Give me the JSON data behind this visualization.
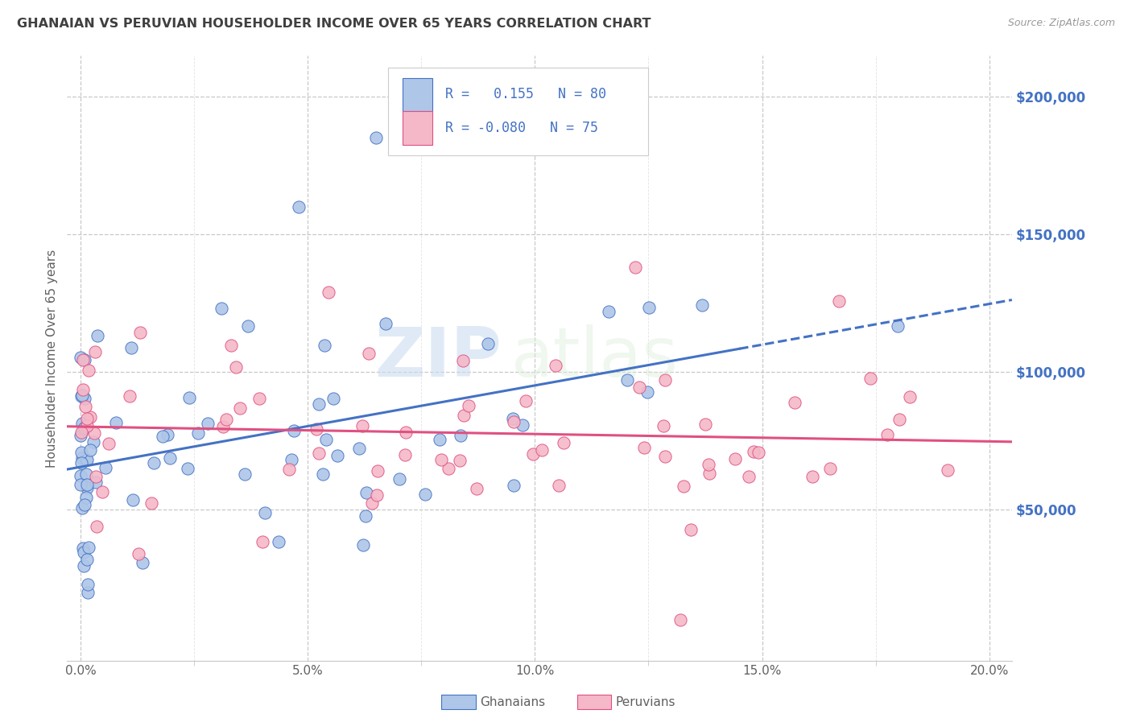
{
  "title": "GHANAIAN VS PERUVIAN HOUSEHOLDER INCOME OVER 65 YEARS CORRELATION CHART",
  "source": "Source: ZipAtlas.com",
  "ylabel": "Householder Income Over 65 years",
  "xlabel_ticks": [
    "0.0%",
    "5.0%",
    "10.0%",
    "15.0%",
    "20.0%"
  ],
  "xlabel_vals": [
    0.0,
    0.05,
    0.1,
    0.15,
    0.2
  ],
  "ytick_labels": [
    "$50,000",
    "$100,000",
    "$150,000",
    "$200,000"
  ],
  "ytick_vals": [
    50000,
    100000,
    150000,
    200000
  ],
  "ylim": [
    -5000,
    215000
  ],
  "xlim": [
    -0.003,
    0.205
  ],
  "r_ghanaian": 0.155,
  "n_ghanaian": 80,
  "r_peruvian": -0.08,
  "n_peruvian": 75,
  "color_ghanaian": "#aec6e8",
  "color_peruvian": "#f4b8c8",
  "line_color_ghanaian": "#4472c4",
  "line_color_peruvian": "#e05080",
  "watermark_zip": "ZIP",
  "watermark_atlas": "atlas",
  "background_color": "#ffffff",
  "grid_color": "#c8c8c8",
  "title_color": "#404040",
  "axis_label_color": "#606060",
  "right_tick_color": "#4472c4",
  "seed": 7
}
